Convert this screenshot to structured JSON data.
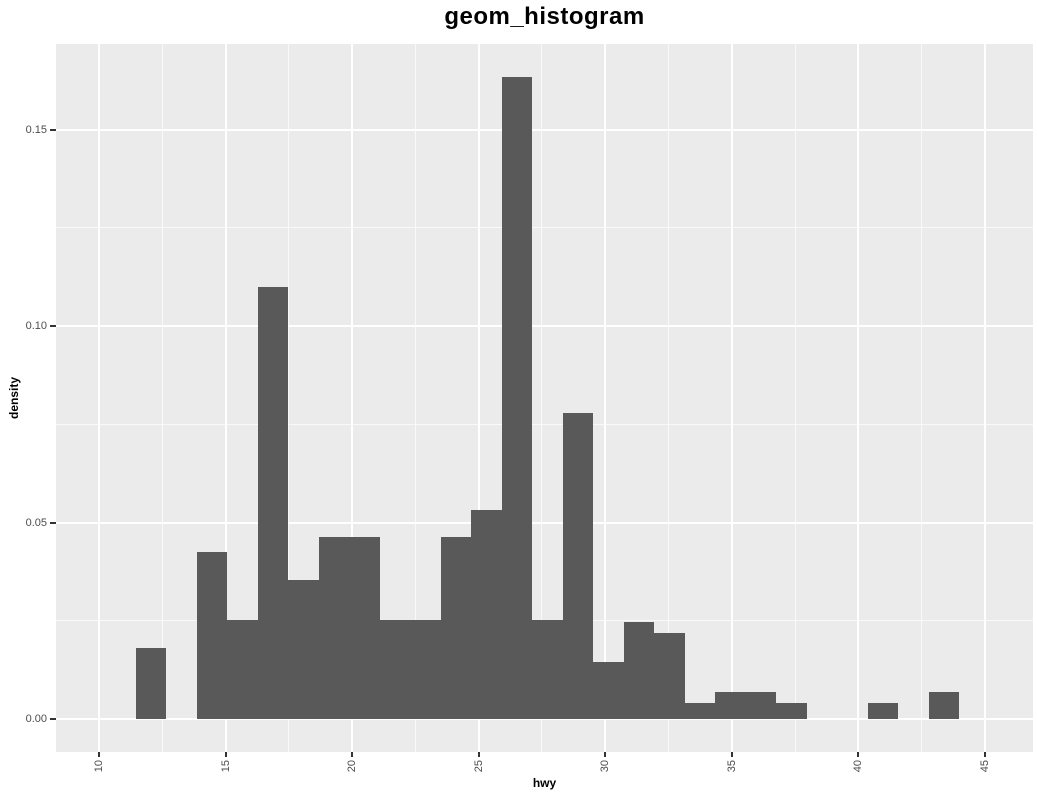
{
  "title": "geom_histogram",
  "chart_data": {
    "type": "histogram",
    "title": "geom_histogram",
    "xlabel": "hwy",
    "ylabel": "density",
    "xlim": [
      8.3,
      46.9
    ],
    "ylim": [
      -0.0084,
      0.1718
    ],
    "grid": true,
    "legend": false,
    "x_ticks": {
      "values": [
        10,
        15,
        20,
        25,
        30,
        35,
        40,
        45
      ],
      "labels": [
        "10",
        "15",
        "20",
        "25",
        "30",
        "35",
        "40",
        "45"
      ]
    },
    "x_minor_ticks": [
      12.5,
      17.5,
      22.5,
      27.5,
      32.5,
      37.5,
      42.5
    ],
    "y_ticks": {
      "values": [
        0.0,
        0.05,
        0.1,
        0.15
      ],
      "labels": [
        "0.00",
        "0.05",
        "0.10",
        "0.15"
      ]
    },
    "y_minor_ticks": [
      0.025,
      0.075,
      0.125
    ],
    "bin_edges": [
      11.46,
      12.66,
      13.87,
      15.07,
      16.28,
      17.48,
      18.69,
      19.89,
      21.1,
      22.3,
      23.51,
      24.71,
      25.92,
      27.12,
      28.33,
      29.53,
      30.74,
      31.94,
      33.15,
      34.35,
      35.56,
      36.76,
      37.97,
      39.17,
      40.38,
      41.58,
      42.79,
      43.99
    ],
    "densities": [
      0.018,
      0,
      0.0424,
      0.0251,
      0.1099,
      0.0353,
      0.0462,
      0.0462,
      0.0251,
      0.0251,
      0.0463,
      0.0532,
      0.1633,
      0.0251,
      0.0779,
      0.0145,
      0.0247,
      0.0218,
      0.004,
      0.0069,
      0.0069,
      0.004,
      0,
      0,
      0.004,
      0,
      0.0069
    ],
    "colors": {
      "bar_fill": "#595959",
      "panel_background": "#EBEBEB",
      "gridline": "#FFFFFF",
      "tick_mark": "#333333",
      "tick_label": "#4D4D4D",
      "axis_title": "#000000",
      "title": "#000000",
      "figure_background": "#FFFFFF"
    }
  }
}
